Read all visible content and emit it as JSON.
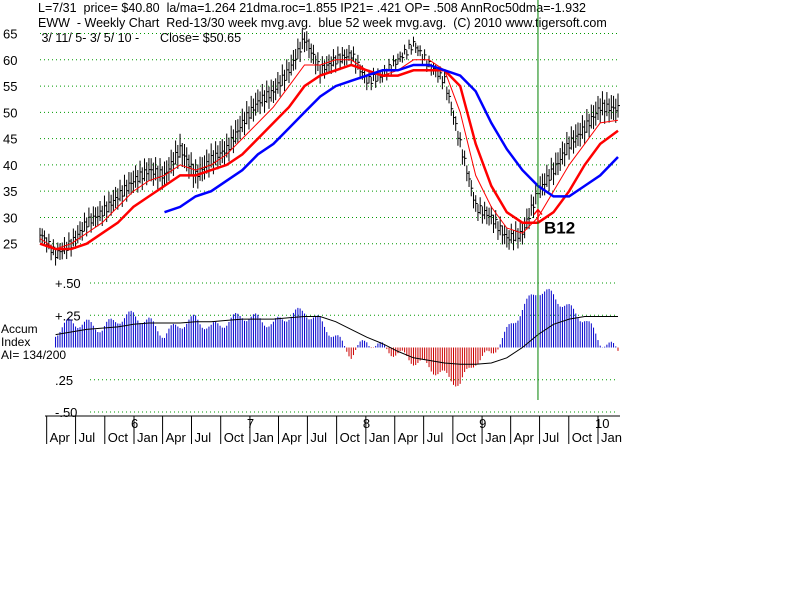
{
  "header": {
    "line1": "L=7/31  price= $40.80  la/ma=1.264 21dma.roc=1.855 IP21= .421 OP= .508 AnnRoc50dma=-1.932",
    "line2": "EWW  - Weekly Chart  Red-13/30 week mvg.avg.  blue 52 week mvg.avg.  (C) 2010 www.tigersoft.com",
    "line3": " 3/ 11/ 5- 3/ 5/ 10 -      Close= $50.65"
  },
  "accum_labels": {
    "line1": "Accum",
    "line2": "Index",
    "line3": "AI= 134/200"
  },
  "annotation": {
    "label": "B12"
  },
  "colors": {
    "price": "#000000",
    "ma13": "#ff0000",
    "ma30": "#ff0000",
    "ma52": "#0000ff",
    "accum_pos": "#0000cc",
    "accum_neg": "#cc0000",
    "grid": "#009900",
    "signal_line": "#008000"
  },
  "chart_data": [
    {
      "type": "line",
      "title": "EWW - Weekly Chart",
      "ylim": [
        20,
        67
      ],
      "y_ticks": [
        "65",
        "60",
        "55",
        "50",
        "45",
        "40",
        "35",
        "30",
        "25"
      ],
      "x": [
        "2005-03-11",
        "2005-04-29",
        "2005-06-17",
        "2005-08-05",
        "2005-09-23",
        "2005-11-11",
        "2005-12-30",
        "2006-02-17",
        "2006-04-07",
        "2006-05-26",
        "2006-07-14",
        "2006-09-01",
        "2006-10-20",
        "2006-12-08",
        "2007-01-26",
        "2007-03-16",
        "2007-05-04",
        "2007-06-22",
        "2007-08-10",
        "2007-09-28",
        "2007-11-16",
        "2008-01-04",
        "2008-02-22",
        "2008-04-11",
        "2008-05-30",
        "2008-07-18",
        "2008-09-05",
        "2008-10-24",
        "2008-12-12",
        "2009-01-30",
        "2009-03-20",
        "2009-05-08",
        "2009-06-26",
        "2009-08-14",
        "2009-10-02",
        "2009-11-20",
        "2010-01-08",
        "2010-03-05"
      ],
      "series": [
        {
          "name": "Price",
          "values": [
            27,
            23,
            25,
            29,
            31,
            34,
            37,
            39,
            38,
            43,
            38,
            41,
            43,
            48,
            52,
            54,
            58,
            64,
            58,
            60,
            61,
            56,
            57,
            60,
            63,
            59,
            56,
            44,
            32,
            30,
            26,
            27,
            35,
            39,
            44,
            47,
            51,
            50.65
          ]
        },
        {
          "name": "13 week mvg.avg.",
          "values": [
            26,
            24,
            25,
            27,
            29,
            32,
            35,
            37,
            38,
            40,
            39,
            40,
            42,
            45,
            48,
            51,
            55,
            59,
            59,
            60,
            60,
            58,
            57,
            58,
            60,
            60,
            58,
            50,
            38,
            32,
            28,
            27,
            30,
            35,
            40,
            44,
            48,
            48.5
          ]
        },
        {
          "name": "30 week mvg.avg.",
          "values": [
            25,
            24,
            24,
            25,
            27,
            29,
            32,
            34,
            36,
            38,
            38,
            39,
            40,
            42,
            45,
            48,
            51,
            55,
            57,
            58,
            59,
            58,
            57,
            57,
            58,
            58,
            58,
            55,
            44,
            36,
            31,
            29,
            29,
            31,
            35,
            40,
            44,
            46.5
          ]
        },
        {
          "name": "52 week mvg.avg.",
          "values": [
            null,
            null,
            null,
            null,
            null,
            null,
            null,
            null,
            31,
            32,
            34,
            35,
            37,
            39,
            42,
            44,
            47,
            50,
            53,
            55,
            56,
            57,
            58,
            58,
            59,
            59,
            58,
            57,
            54,
            48,
            43,
            39,
            36,
            34,
            34,
            36,
            38,
            41.5
          ]
        }
      ],
      "x_year_labels": [
        "6",
        "7",
        "8",
        "9",
        "10"
      ],
      "x_month_labels": [
        "Apr",
        "Jul",
        "Oct",
        "Jan",
        "Apr",
        "Jul",
        "Oct",
        "Jan",
        "Apr",
        "Jul",
        "Oct",
        "Jan",
        "Apr",
        "Jul",
        "Oct",
        "Jan",
        "Apr",
        "Jul",
        "Oct",
        "Jan",
        "Jan"
      ],
      "signal": {
        "date": "2009-06-26",
        "label": "B12",
        "arrow_price": 31.5
      }
    },
    {
      "type": "bar",
      "title": "Accum Index",
      "ylim": [
        -0.5,
        0.5
      ],
      "y_ticks": [
        "+.50",
        "+.25",
        ".25",
        "-.50"
      ],
      "x": [
        "2005-04-29",
        "2005-06-17",
        "2005-08-05",
        "2005-09-23",
        "2005-11-11",
        "2005-12-30",
        "2006-02-17",
        "2006-04-07",
        "2006-05-26",
        "2006-07-14",
        "2006-09-01",
        "2006-10-20",
        "2006-12-08",
        "2007-01-26",
        "2007-03-16",
        "2007-05-04",
        "2007-06-22",
        "2007-08-10",
        "2007-09-28",
        "2007-11-16",
        "2008-01-04",
        "2008-02-22",
        "2008-04-11",
        "2008-05-30",
        "2008-07-18",
        "2008-09-05",
        "2008-10-24",
        "2008-12-12",
        "2009-01-30",
        "2009-03-20",
        "2009-05-08",
        "2009-06-26",
        "2009-08-14",
        "2009-10-02",
        "2009-11-20",
        "2010-01-08",
        "2010-03-05"
      ],
      "values": [
        0.12,
        0.2,
        0.18,
        0.15,
        0.22,
        0.25,
        0.2,
        0.1,
        0.18,
        0.22,
        0.15,
        0.2,
        0.25,
        0.22,
        0.18,
        0.25,
        0.28,
        0.2,
        0.08,
        -0.05,
        0.05,
        0.0,
        -0.05,
        -0.1,
        -0.15,
        -0.22,
        -0.28,
        -0.1,
        -0.05,
        0.12,
        0.3,
        0.45,
        0.4,
        0.3,
        0.22,
        0.05,
        -0.02
      ],
      "line_values": [
        0.1,
        0.12,
        0.14,
        0.15,
        0.16,
        0.18,
        0.19,
        0.19,
        0.19,
        0.2,
        0.2,
        0.21,
        0.22,
        0.22,
        0.22,
        0.23,
        0.24,
        0.24,
        0.2,
        0.14,
        0.08,
        0.03,
        -0.03,
        -0.08,
        -0.1,
        -0.12,
        -0.13,
        -0.13,
        -0.12,
        -0.08,
        0.0,
        0.1,
        0.18,
        0.22,
        0.24,
        0.24,
        0.24
      ]
    }
  ]
}
